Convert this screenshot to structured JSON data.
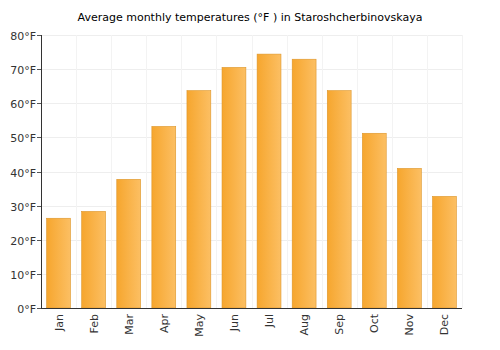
{
  "chart_data": {
    "type": "bar",
    "title": "Average monthly temperatures (°F ) in Staroshcherbinovskaya",
    "categories": [
      "Jan",
      "Feb",
      "Mar",
      "Apr",
      "May",
      "Jun",
      "Jul",
      "Aug",
      "Sep",
      "Oct",
      "Nov",
      "Dec"
    ],
    "values": [
      26.3,
      28.3,
      37.7,
      53.2,
      63.7,
      70.5,
      74.4,
      72.9,
      63.7,
      51.2,
      40.9,
      32.7
    ],
    "color": "#fba92f",
    "ylim": [
      0,
      80
    ],
    "yticks": [
      {
        "value": 0,
        "label": "0°F"
      },
      {
        "value": 10,
        "label": "10°F"
      },
      {
        "value": 20,
        "label": "20°F"
      },
      {
        "value": 30,
        "label": "30°F"
      },
      {
        "value": 40,
        "label": "40°F"
      },
      {
        "value": 50,
        "label": "50°F"
      },
      {
        "value": 60,
        "label": "60°F"
      },
      {
        "value": 70,
        "label": "70°F"
      },
      {
        "value": 80,
        "label": "80°F"
      }
    ],
    "grid": true
  }
}
